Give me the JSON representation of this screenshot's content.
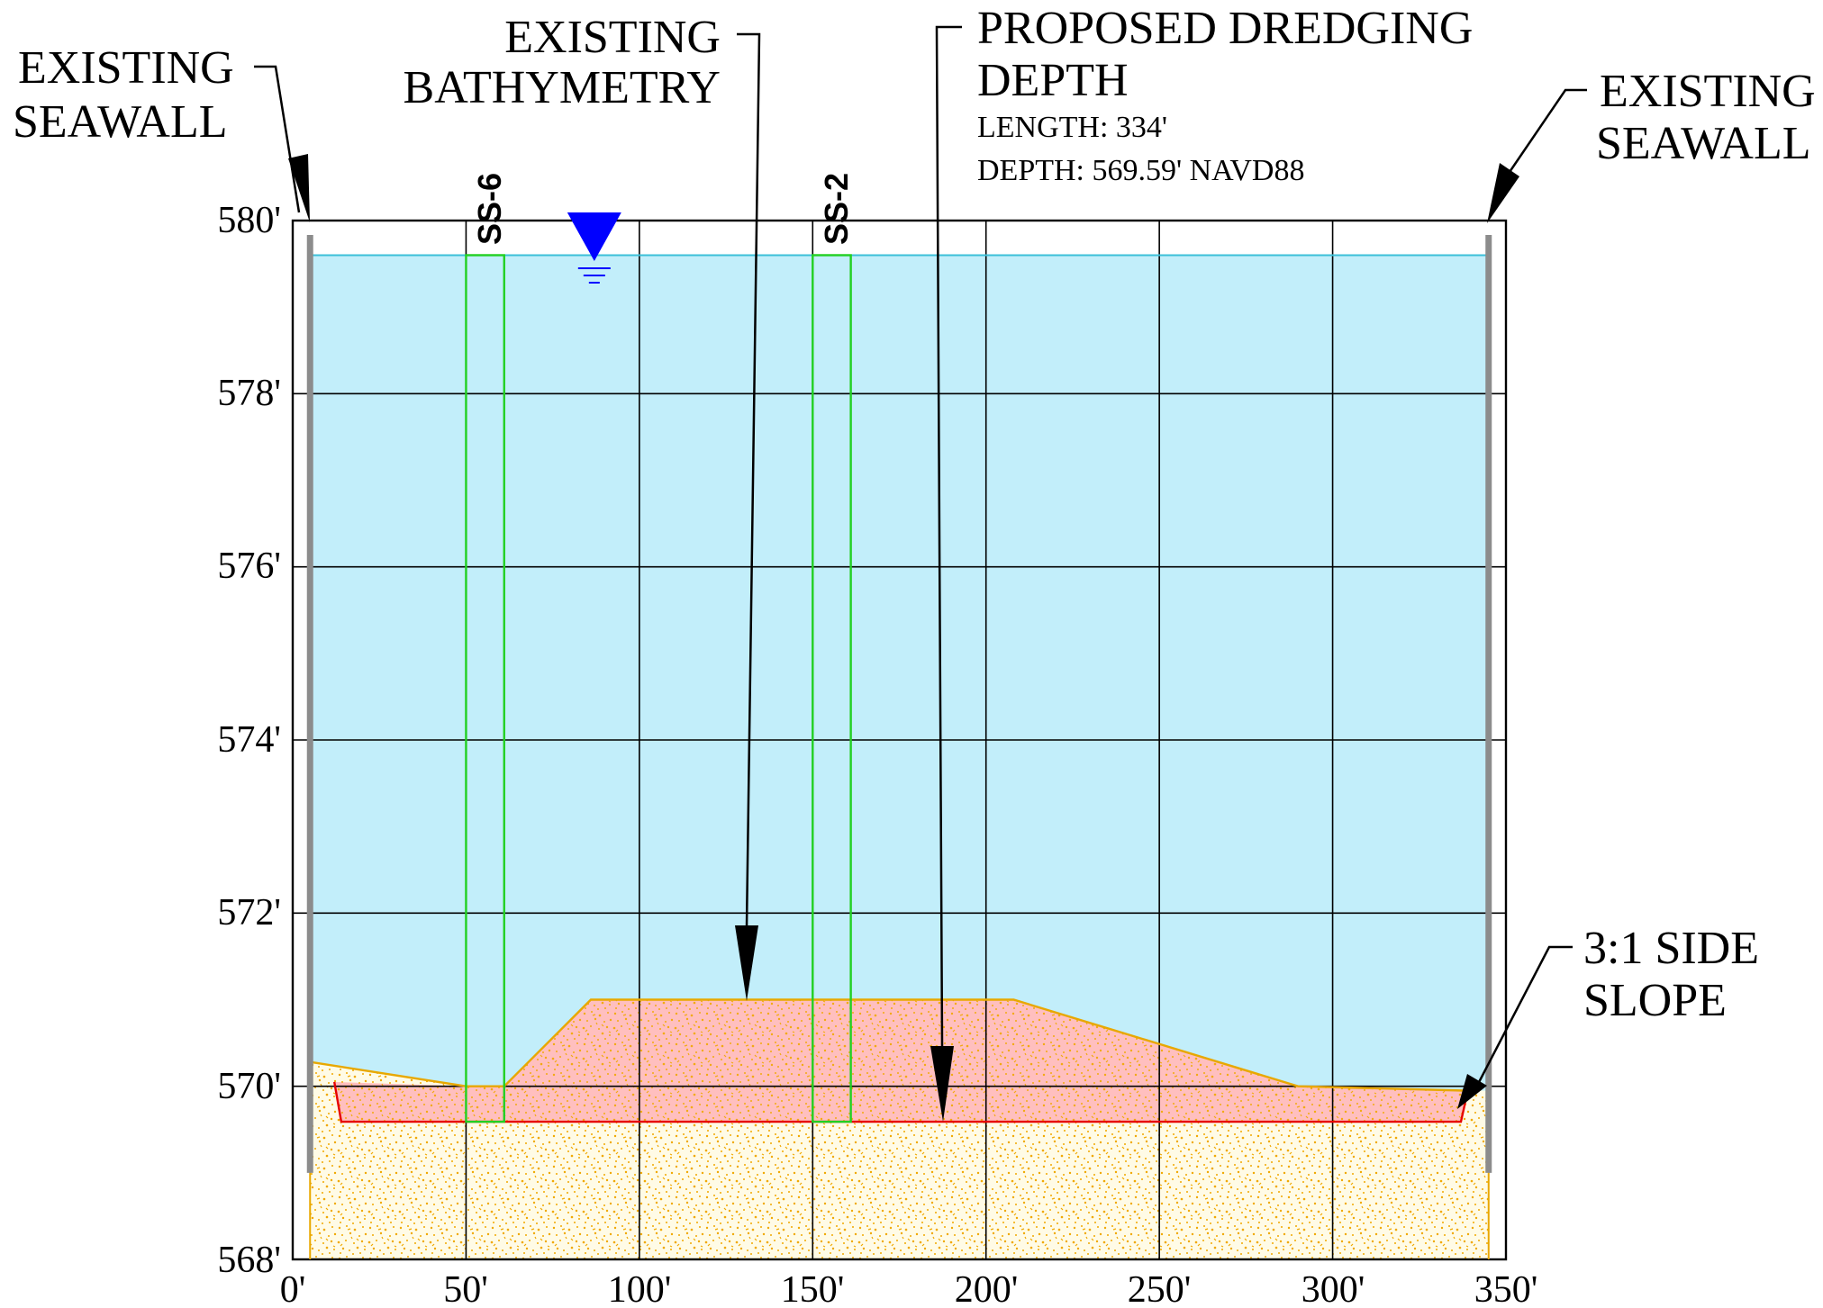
{
  "labels": {
    "seawall_left": [
      "EXISTING",
      "SEAWALL"
    ],
    "seawall_right": [
      "EXISTING",
      "SEAWALL"
    ],
    "bathymetry": [
      "EXISTING",
      "BATHYMETRY"
    ],
    "dredging_title": [
      "PROPOSED DREDGING",
      "DEPTH"
    ],
    "dredging_length": "LENGTH: 334'",
    "dredging_depth": "DEPTH: 569.59' NAVD88",
    "side_slope": [
      "3:1 SIDE",
      "SLOPE"
    ]
  },
  "borings": [
    {
      "name": "SS-6",
      "x_start": 50,
      "x_end": 61,
      "bottom": 569.59
    },
    {
      "name": "SS-2",
      "x_start": 150,
      "x_end": 161,
      "bottom": 569.59
    }
  ],
  "axes": {
    "x_ticks": [
      0,
      50,
      100,
      150,
      200,
      250,
      300,
      350
    ],
    "x_tick_labels": [
      "0'",
      "50'",
      "100'",
      "150'",
      "200'",
      "250'",
      "300'",
      "350'"
    ],
    "y_ticks": [
      568,
      570,
      572,
      574,
      576,
      578,
      580
    ],
    "y_tick_labels": [
      "568'",
      "570'",
      "572'",
      "574'",
      "576'",
      "578'",
      "580'"
    ],
    "xlim": [
      0,
      350
    ],
    "ylim": [
      568,
      580
    ]
  },
  "section": {
    "water_surface": 579.6,
    "seawall_left_x": 5,
    "seawall_right_x": 345,
    "seawall_bottom": 569.0,
    "dredge_depth": 569.59,
    "bathymetry_profile": [
      [
        5,
        570.28
      ],
      [
        50,
        570.0
      ],
      [
        61,
        570.0
      ],
      [
        86,
        571.0
      ],
      [
        208,
        571.0
      ],
      [
        290,
        570.0
      ],
      [
        338,
        569.95
      ]
    ],
    "dredge_profile": [
      [
        12,
        570.05
      ],
      [
        14,
        569.59
      ],
      [
        337,
        569.59
      ],
      [
        339,
        569.95
      ]
    ]
  },
  "colors": {
    "water": "#c2eefa",
    "dredge_fill": "#ffbfbf",
    "soil_dots": "#f0a800",
    "bathymetry_line": "#e8a800",
    "dredge_line": "#e60000",
    "boring_line": "#22d022",
    "seawall": "#8c8c8c",
    "water_marker": "#0000ff",
    "grid": "#000000"
  }
}
